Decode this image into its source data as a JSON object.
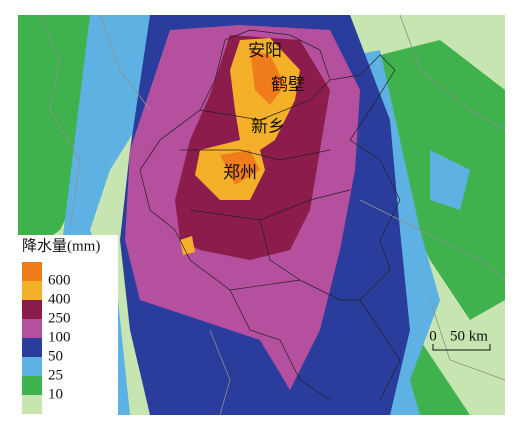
{
  "legend": {
    "title": "降水量(mm)",
    "breaks": [
      600,
      400,
      250,
      100,
      50,
      25,
      10
    ],
    "colors": [
      "#f07c1c",
      "#f5b02a",
      "#8c1c4c",
      "#b5509e",
      "#2a3d9c",
      "#5db2e3",
      "#3fb24e",
      "#c6e5b0"
    ]
  },
  "cities": [
    {
      "label": "安阳"
    },
    {
      "label": "鹤壁"
    },
    {
      "label": "新乡"
    },
    {
      "label": "郑州"
    }
  ],
  "scale_bar": {
    "start": "0",
    "end": "50 km"
  }
}
